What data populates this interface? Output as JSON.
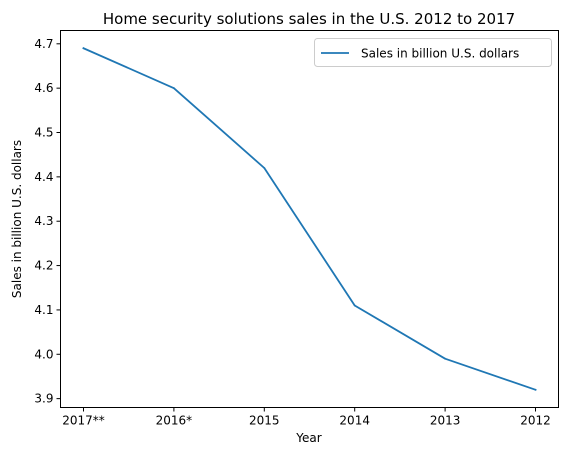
{
  "chart_data": {
    "type": "line",
    "title": "Home security solutions sales in the U.S. 2012 to 2017",
    "xlabel": "Year",
    "ylabel": "Sales in billion U.S. dollars",
    "categories": [
      "2017**",
      "2016*",
      "2015",
      "2014",
      "2013",
      "2012"
    ],
    "series": [
      {
        "name": "Sales in billion U.S. dollars",
        "values": [
          4.69,
          4.6,
          4.42,
          4.11,
          3.99,
          3.92
        ],
        "color": "#1f77b4"
      }
    ],
    "ylim": [
      3.88,
      4.73
    ],
    "yticks": [
      3.9,
      4.0,
      4.1,
      4.2,
      4.3,
      4.4,
      4.5,
      4.6,
      4.7
    ],
    "yticklabels": [
      "3.9",
      "4.0",
      "4.1",
      "4.2",
      "4.3",
      "4.4",
      "4.5",
      "4.6",
      "4.7"
    ],
    "grid": false,
    "legend_position": "top-right"
  }
}
